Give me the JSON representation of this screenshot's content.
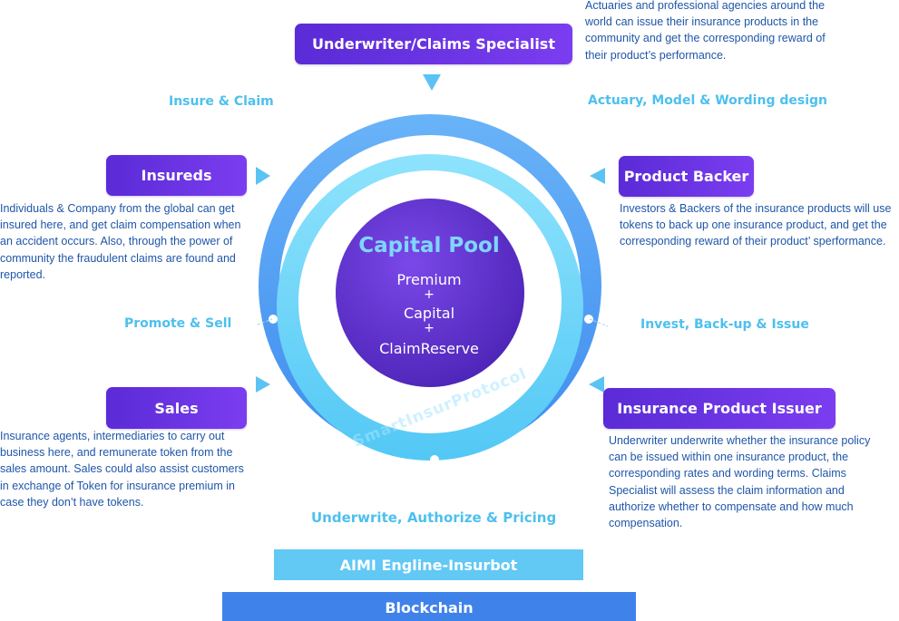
{
  "capital_pool": {
    "title": "Capital Pool",
    "lines": [
      "Premium",
      "+",
      "Capital",
      "+",
      "ClaimReserve"
    ],
    "watermark": "SmartInsurProtocol"
  },
  "roles": {
    "underwriter": {
      "label": "Underwriter/Claims Specialist",
      "description": "Actuaries and professional agencies around the world can issue their insurance products in the community and get the corresponding reward of their product’s performance."
    },
    "insureds": {
      "label": "Insureds",
      "description": "Individuals & Company from the global can get insured here, and get claim compensation when an accident occurs. Also, through the power of community the fraudulent claims are found and reported."
    },
    "product_backer": {
      "label": "Product Backer",
      "description": "Investors & Backers of the insurance products will use tokens to back up one insurance product, and get the corresponding reward of their product’ sperformance."
    },
    "sales": {
      "label": "Sales",
      "description": "Insurance agents, intermediaries to carry out business here, and remunerate token from the sales amount. Sales could also assist customers in exchange of Token for insurance premium in case they don’t have tokens."
    },
    "issuer": {
      "label": "Insurance Product Issuer",
      "description": "Underwriter underwrite whether the insurance policy can be issued within one insurance product, the corresponding rates and wording terms. Claims Specialist will assess the claim information and authorize whether to compensate and how much compensation."
    }
  },
  "flows": {
    "insure_claim": "Insure & Claim",
    "actuary": "Actuary, Model & Wording design",
    "promote": "Promote & Sell",
    "invest": "Invest, Back-up & Issue",
    "underwrite": "Underwrite, Authorize & Pricing"
  },
  "layers": {
    "engine": "AIMI Engline-Insurbot",
    "blockchain": "Blockchain"
  },
  "colors": {
    "role_box": "#6a34e6",
    "description_text": "#1f56a8",
    "flow_text": "#4dc0ee",
    "outer_ring": "#5aa8f6",
    "inner_ring": "#69d6fa",
    "pool": "#5b2fcf",
    "engine_bar": "#62c8f4",
    "blockchain_bar": "#3f82ea"
  }
}
